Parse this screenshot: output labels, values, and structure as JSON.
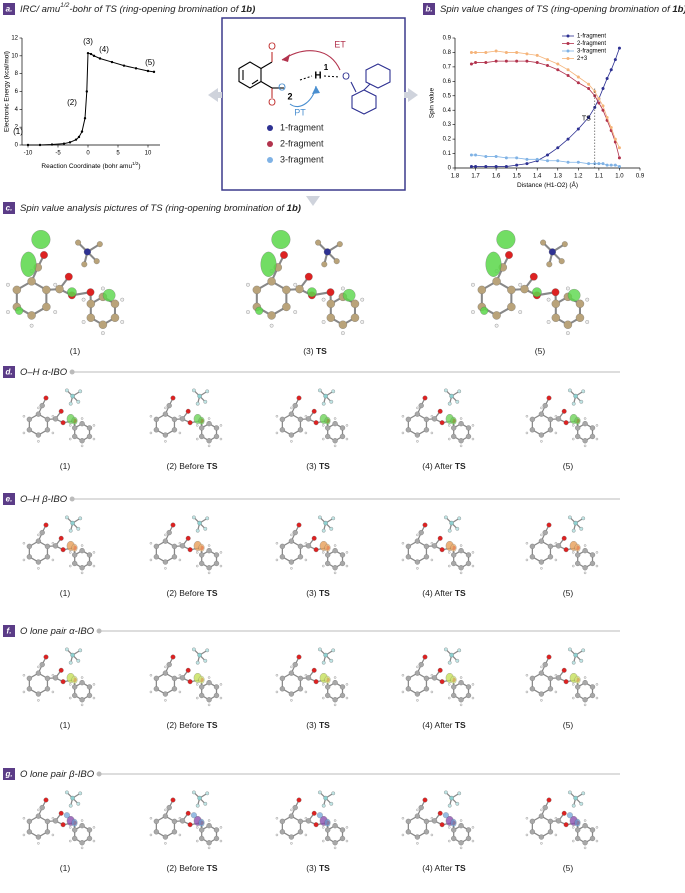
{
  "chart_data": [
    {
      "type": "line",
      "xlabel": [
        {
          "text": "Reaction Coordinate (bohr amu"
        },
        {
          "text": "1/2",
          "sup": true
        },
        {
          "text": ")"
        }
      ],
      "ylabel": "Electronic Energy (kcal/mol)",
      "color": "#000000",
      "x": [
        -10,
        -8,
        -6,
        -4,
        -3,
        -2,
        -1.5,
        -1,
        -0.5,
        -0.2,
        0,
        0.5,
        1,
        2,
        4,
        6,
        8,
        10,
        11
      ],
      "values": [
        0,
        0,
        0.05,
        0.15,
        0.3,
        0.6,
        0.9,
        1.5,
        3,
        6,
        10.3,
        10.2,
        10,
        9.7,
        9.3,
        8.9,
        8.6,
        8.3,
        8.2
      ],
      "xlim": [
        -11,
        12
      ],
      "xticks": [
        -10,
        -5,
        0,
        5,
        10
      ],
      "ylim": [
        0,
        12
      ],
      "yticks": [
        0,
        2,
        4,
        6,
        8,
        10,
        12
      ],
      "annotations": [
        {
          "text": "(1)"
        },
        {
          "text": "(2)"
        },
        {
          "text": "(3)"
        },
        {
          "text": "(4)"
        },
        {
          "text": "(5)"
        }
      ]
    },
    {
      "type": "line",
      "xlabel": [
        {
          "text": "Distance (H1-O2) (Å)"
        }
      ],
      "ylabel": "Spin value",
      "legend": "top-right",
      "x": [
        1.72,
        1.7,
        1.65,
        1.6,
        1.55,
        1.5,
        1.45,
        1.4,
        1.35,
        1.3,
        1.25,
        1.2,
        1.15,
        1.12,
        1.1,
        1.08,
        1.06,
        1.04,
        1.02,
        1.0
      ],
      "series": [
        {
          "name": "1-fragment",
          "color": "#2e3192",
          "values": [
            0.01,
            0.01,
            0.01,
            0.01,
            0.01,
            0.02,
            0.03,
            0.05,
            0.09,
            0.14,
            0.2,
            0.27,
            0.35,
            0.42,
            0.48,
            0.55,
            0.62,
            0.68,
            0.75,
            0.83
          ]
        },
        {
          "name": "2-fragment",
          "color": "#b2334d",
          "values": [
            0.72,
            0.73,
            0.73,
            0.74,
            0.74,
            0.74,
            0.74,
            0.73,
            0.71,
            0.68,
            0.64,
            0.59,
            0.55,
            0.5,
            0.45,
            0.4,
            0.33,
            0.26,
            0.18,
            0.07
          ]
        },
        {
          "name": "3-fragment",
          "color": "#7fb2e5",
          "values": [
            0.09,
            0.09,
            0.08,
            0.08,
            0.07,
            0.07,
            0.06,
            0.06,
            0.05,
            0.05,
            0.04,
            0.04,
            0.03,
            0.03,
            0.03,
            0.03,
            0.02,
            0.02,
            0.02,
            0.01
          ]
        },
        {
          "name": "2+3",
          "color": "#f5b47a",
          "values": [
            0.8,
            0.8,
            0.8,
            0.81,
            0.8,
            0.8,
            0.79,
            0.78,
            0.75,
            0.72,
            0.68,
            0.63,
            0.58,
            0.53,
            0.48,
            0.43,
            0.35,
            0.28,
            0.2,
            0.14
          ]
        }
      ],
      "xlim": [
        1.8,
        0.9
      ],
      "xticks": [
        1.8,
        1.7,
        1.6,
        1.5,
        1.4,
        1.3,
        1.2,
        1.1,
        {
          "value": 1,
          "label": "1.0"
        },
        0.9
      ],
      "ylim": [
        0,
        0.9
      ],
      "yticks": [
        0,
        0.1,
        0.2,
        0.3,
        0.4,
        0.5,
        0.6,
        0.7,
        0.8,
        0.9
      ],
      "annotations": [
        {
          "text": "TS",
          "x": 1.12
        }
      ]
    }
  ],
  "panels": [
    {
      "letter": "a.",
      "title": [
        {
          "text": "IRC/ amu"
        },
        {
          "text": "1/2",
          "sup": true
        },
        {
          "text": "-bohr of TS (ring-opening bromination of "
        },
        {
          "text": "1b)",
          "bold": true
        }
      ]
    },
    {
      "letter": "b.",
      "title": [
        {
          "text": "Spin value changes of TS (ring-opening bromination of "
        },
        {
          "text": "1b)",
          "bold": true
        }
      ]
    },
    {
      "letter": "c.",
      "title": [
        {
          "text": "Spin value analysis pictures of TS (ring-opening bromination of "
        },
        {
          "text": "1b)",
          "bold": true
        }
      ],
      "images": [
        [
          {
            "text": "(1)"
          }
        ],
        [
          {
            "text": "(3) "
          },
          {
            "text": "TS",
            "bold": true
          }
        ],
        [
          {
            "text": "(5)"
          }
        ]
      ]
    },
    {
      "letter": "d.",
      "title": [
        {
          "text": "O–H  "
        },
        {
          "text": "α-IBO"
        }
      ],
      "images": [
        [
          {
            "text": "(1)"
          }
        ],
        [
          {
            "text": "(2) Before "
          },
          {
            "text": "TS",
            "bold": true
          }
        ],
        [
          {
            "text": "(3) "
          },
          {
            "text": "TS",
            "bold": true
          }
        ],
        [
          {
            "text": "(4) After "
          },
          {
            "text": "TS",
            "bold": true
          }
        ],
        [
          {
            "text": "(5)"
          }
        ]
      ]
    },
    {
      "letter": "e.",
      "title": [
        {
          "text": "O–H  "
        },
        {
          "text": "β-IBO"
        }
      ],
      "images": [
        [
          {
            "text": "(1)"
          }
        ],
        [
          {
            "text": "(2) Before "
          },
          {
            "text": "TS",
            "bold": true
          }
        ],
        [
          {
            "text": "(3) "
          },
          {
            "text": "TS",
            "bold": true
          }
        ],
        [
          {
            "text": "(4) After "
          },
          {
            "text": "TS",
            "bold": true
          }
        ],
        [
          {
            "text": "(5)"
          }
        ]
      ]
    },
    {
      "letter": "f.",
      "title": [
        {
          "text": "O lone pair  "
        },
        {
          "text": "α-IBO"
        }
      ],
      "images": [
        [
          {
            "text": "(1)"
          }
        ],
        [
          {
            "text": "(2) Before "
          },
          {
            "text": "TS",
            "bold": true
          }
        ],
        [
          {
            "text": "(3) "
          },
          {
            "text": "TS",
            "bold": true
          }
        ],
        [
          {
            "text": "(4) After "
          },
          {
            "text": "TS",
            "bold": true
          }
        ],
        [
          {
            "text": "(5)"
          }
        ]
      ]
    },
    {
      "letter": "g.",
      "title": [
        {
          "text": "O lone pair  "
        },
        {
          "text": "β-IBO"
        }
      ],
      "images": [
        [
          {
            "text": "(1)"
          }
        ],
        [
          {
            "text": "(2) Before "
          },
          {
            "text": "TS",
            "bold": true
          }
        ],
        [
          {
            "text": "(3) "
          },
          {
            "text": "TS",
            "bold": true
          }
        ],
        [
          {
            "text": "(4) After "
          },
          {
            "text": "TS",
            "bold": true
          }
        ],
        [
          {
            "text": "(5)"
          }
        ]
      ]
    }
  ],
  "mechanism": {
    "labels": [
      {
        "text": "ET",
        "color": "#b2334d"
      },
      {
        "text": "PT",
        "color": "#4a8fd0"
      },
      {
        "text": "H",
        "color": "#000000"
      },
      {
        "text": "1",
        "color": "#000000"
      },
      {
        "text": "O",
        "color": "#2e3192"
      },
      {
        "text": "2",
        "color": "#000000"
      },
      {
        "text": "O",
        "color": "#4a8fd0"
      },
      {
        "text": "O",
        "color": "#c0302f"
      },
      {
        "text": "O",
        "color": "#c0302f"
      }
    ],
    "legend": [
      {
        "name": "1-fragment",
        "color": "#2e3192"
      },
      {
        "name": "2-fragment",
        "color": "#b2334d"
      },
      {
        "name": "3-fragment",
        "color": "#7fb2e5"
      }
    ]
  }
}
